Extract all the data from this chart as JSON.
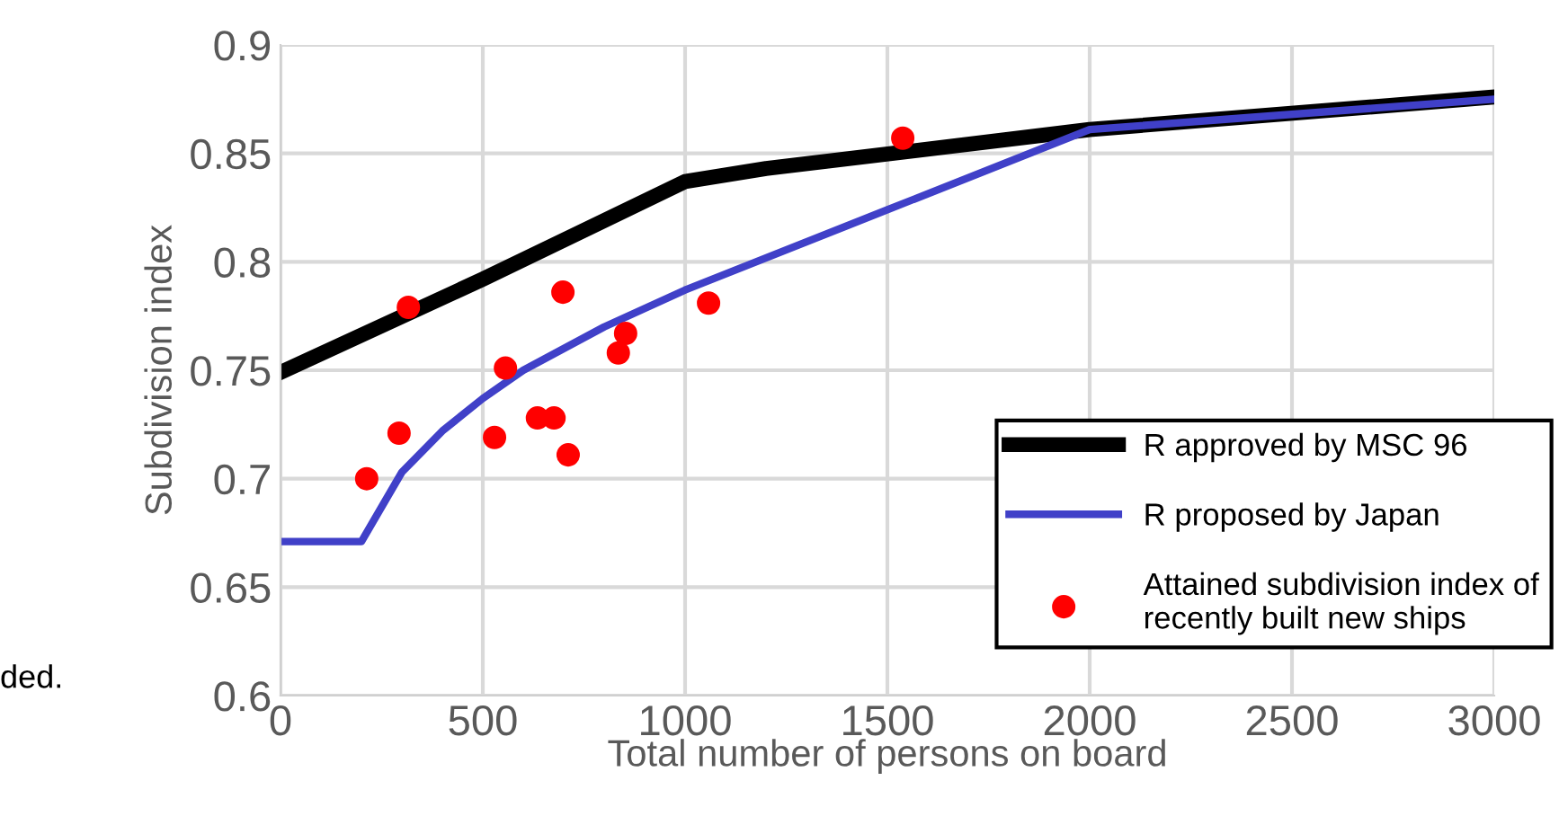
{
  "chart_data": {
    "type": "line",
    "xlabel": "Total number of persons on board",
    "ylabel": "Subdivision index",
    "xlim": [
      0,
      3000
    ],
    "ylim": [
      0.6,
      0.9
    ],
    "xticks": [
      0,
      500,
      1000,
      1500,
      2000,
      2500,
      3000
    ],
    "yticks": [
      0.6,
      0.65,
      0.7,
      0.75,
      0.8,
      0.85,
      0.9
    ],
    "grid": true,
    "legend": "bottom right",
    "series": [
      {
        "name": "R approved by MSC 96",
        "color": "#000000",
        "x": [
          0,
          500,
          1000,
          1200,
          2000,
          3000
        ],
        "values": [
          0.749,
          0.792,
          0.837,
          0.843,
          0.861,
          0.876
        ]
      },
      {
        "name": "R proposed by Japan",
        "color": "#4040c8",
        "x": [
          0,
          200,
          300,
          400,
          500,
          600,
          800,
          1000,
          1500,
          2000,
          3000
        ],
        "values": [
          0.671,
          0.671,
          0.703,
          0.722,
          0.737,
          0.75,
          0.77,
          0.787,
          0.824,
          0.861,
          0.875
        ]
      },
      {
        "name": "Attained subdivision index of\nrecently built new ships",
        "type": "scatter",
        "color": "#ff0000",
        "marker": "circle",
        "x": [
          316,
          213,
          293,
          529,
          556,
          698,
          635,
          676,
          711,
          835,
          853,
          1058,
          1538
        ],
        "values": [
          0.779,
          0.7,
          0.721,
          0.719,
          0.751,
          0.786,
          0.728,
          0.728,
          0.711,
          0.758,
          0.767,
          0.781,
          0.857
        ]
      }
    ],
    "annotations": [
      "ded."
    ]
  }
}
